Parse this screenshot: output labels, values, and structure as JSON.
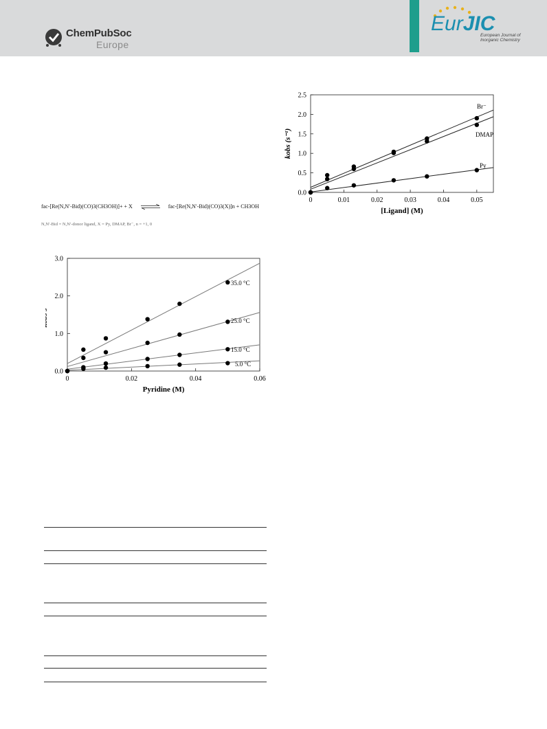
{
  "header": {
    "publisher_line1": "ChemPubSoc",
    "publisher_line2": "Europe",
    "journal_eur": "Eur",
    "journal_jic": "JIC",
    "journal_subtitle": "European Journal of Inorganic Chemistry",
    "colors": {
      "band": "#d9dadb",
      "teal": "#1e9e8c",
      "journal_blue": "#1b8fb0"
    }
  },
  "reaction": {
    "left": "fac-[Re(N,N′-Bid)(CO)3(CH3OH)]+  +  X",
    "right": "fac-[Re(N,N′-Bid)(CO)3(X)]n + CH3OH",
    "note": "N,N′-Bid = N,N′-donor ligand, X = Py, DMAP, Br⁻, n = +1, 0"
  },
  "chart_data": [
    {
      "type": "scatter",
      "xlabel": "[Ligand] (M)",
      "ylabel": "kobs (s⁻¹)",
      "xlim": [
        0,
        0.055
      ],
      "ylim": [
        0,
        2.5
      ],
      "x_ticks": [
        "0",
        "0.01",
        "0.02",
        "0.03",
        "0.04",
        "0.05"
      ],
      "y_ticks": [
        "0.0",
        "0.5",
        "1.0",
        "1.5",
        "2.0",
        "2.5"
      ],
      "series": [
        {
          "name": "Br⁻",
          "x": [
            0,
            0.005,
            0.013,
            0.025,
            0.035,
            0.05
          ],
          "y": [
            0.0,
            0.44,
            0.66,
            1.04,
            1.38,
            1.9
          ],
          "fit": [
            0.13,
            36.0
          ]
        },
        {
          "name": "DMAP",
          "x": [
            0,
            0.005,
            0.013,
            0.025,
            0.035,
            0.05
          ],
          "y": [
            0.0,
            0.34,
            0.6,
            1.01,
            1.31,
            1.73
          ],
          "fit": [
            0.08,
            33.8
          ]
        },
        {
          "name": "Py",
          "x": [
            0,
            0.005,
            0.013,
            0.025,
            0.035,
            0.05
          ],
          "y": [
            0.0,
            0.11,
            0.18,
            0.31,
            0.41,
            0.57
          ],
          "fit": [
            0.01,
            11.4
          ]
        }
      ]
    },
    {
      "type": "scatter",
      "xlabel": "Pyridine (M)",
      "ylabel": "kobs s⁻¹",
      "xlim": [
        0,
        0.06
      ],
      "ylim": [
        0,
        3.0
      ],
      "x_ticks": [
        "0",
        "0.02",
        "0.04",
        "0.06"
      ],
      "y_ticks": [
        "0.0",
        "1.0",
        "2.0",
        "3.0"
      ],
      "series": [
        {
          "name": "35.0 °C",
          "x": [
            0,
            0.005,
            0.012,
            0.025,
            0.035,
            0.05
          ],
          "y": [
            0.0,
            0.57,
            0.87,
            1.38,
            1.79,
            2.36
          ],
          "fit": [
            0.2,
            44.5
          ]
        },
        {
          "name": "25.0 °C",
          "x": [
            0,
            0.005,
            0.012,
            0.025,
            0.035,
            0.05
          ],
          "y": [
            0.0,
            0.35,
            0.5,
            0.75,
            0.97,
            1.31
          ],
          "fit": [
            0.12,
            24.0
          ]
        },
        {
          "name": "15.0 °C",
          "x": [
            0,
            0.005,
            0.012,
            0.025,
            0.035,
            0.05
          ],
          "y": [
            0.0,
            0.1,
            0.2,
            0.32,
            0.43,
            0.58
          ],
          "fit": [
            0.05,
            10.8
          ]
        },
        {
          "name": "5.0 °C",
          "x": [
            0,
            0.005,
            0.012,
            0.025,
            0.035,
            0.05
          ],
          "y": [
            0.0,
            0.06,
            0.09,
            0.13,
            0.17,
            0.21
          ],
          "fit": [
            0.02,
            4.2
          ]
        }
      ]
    }
  ]
}
